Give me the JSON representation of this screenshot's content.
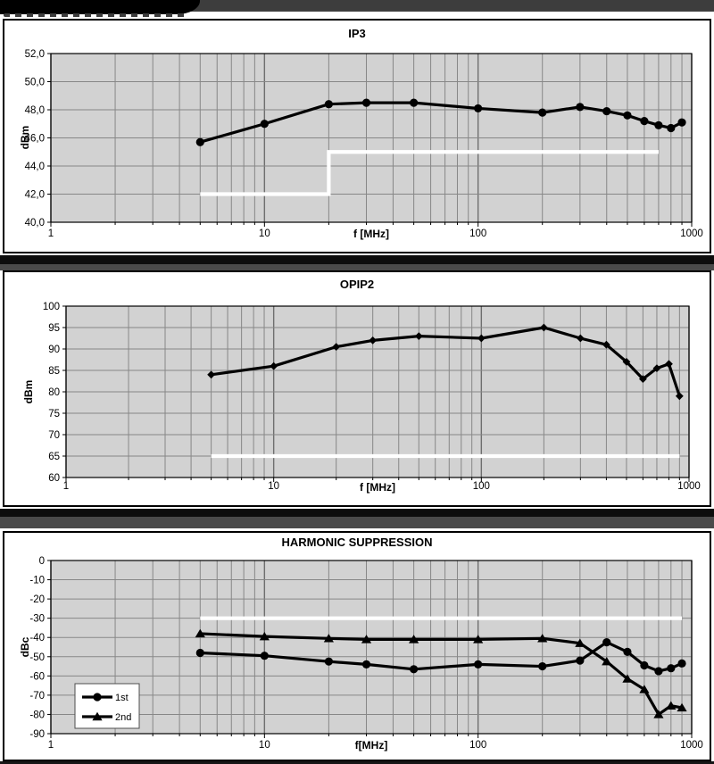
{
  "colors": {
    "plot_bg": "#d2d2d2",
    "grid": "#878787",
    "grid_major": "#6e6e6e",
    "series": "#000000",
    "limit_line": "#ffffff",
    "panel_border": "#000000",
    "separator_black": "#0d0d0d",
    "separator_gray": "#4a4a4a",
    "banner_black": "#000000",
    "banner_gray": "#3d3d3d"
  },
  "chart_data": [
    {
      "type": "line",
      "title": "IP3",
      "ylabel": "dBm",
      "xlabel": "f [MHz]",
      "x_scale": "log",
      "xlim": [
        1,
        1000
      ],
      "ylim": [
        40,
        52
      ],
      "grid": true,
      "xtick_values": [
        1,
        10,
        100,
        1000
      ],
      "xtick_labels": [
        "1",
        "10",
        "100",
        "1000"
      ],
      "ytick_values": [
        52,
        50,
        48,
        46,
        44,
        42,
        40
      ],
      "ytick_labels": [
        "52,0",
        "50,0",
        "48,0",
        "46,0",
        "44,0",
        "42,0",
        "40,0"
      ],
      "x": [
        5,
        10,
        20,
        30,
        50,
        100,
        200,
        300,
        400,
        500,
        600,
        700,
        800,
        900
      ],
      "series": [
        {
          "marker": "circle",
          "values": [
            45.7,
            47.0,
            48.4,
            48.5,
            48.5,
            48.1,
            47.8,
            48.2,
            47.9,
            47.6,
            47.2,
            46.9,
            46.7,
            47.1
          ]
        }
      ],
      "limit_line": {
        "points": [
          [
            5,
            42
          ],
          [
            20,
            42
          ],
          [
            20,
            45
          ],
          [
            700,
            45
          ]
        ]
      },
      "legend": null
    },
    {
      "type": "line",
      "title": "OPIP2",
      "ylabel": "dBm",
      "xlabel": "f [MHz]",
      "x_scale": "log",
      "xlim": [
        1,
        1000
      ],
      "ylim": [
        60,
        100
      ],
      "grid": true,
      "xtick_values": [
        1,
        10,
        100,
        1000
      ],
      "xtick_labels": [
        "1",
        "10",
        "100",
        "1000"
      ],
      "ytick_values": [
        100,
        95,
        90,
        85,
        80,
        75,
        70,
        65,
        60
      ],
      "ytick_labels": [
        "100",
        "95",
        "90",
        "85",
        "80",
        "75",
        "70",
        "65",
        "60"
      ],
      "x": [
        5,
        10,
        20,
        30,
        50,
        100,
        200,
        300,
        400,
        500,
        600,
        700,
        800,
        900
      ],
      "series": [
        {
          "marker": "diamond",
          "values": [
            84,
            86,
            90.5,
            92,
            93,
            92.5,
            95,
            92.5,
            91,
            87,
            83,
            85.5,
            86.5,
            79
          ]
        }
      ],
      "limit_line": {
        "points": [
          [
            5,
            65
          ],
          [
            900,
            65
          ]
        ]
      },
      "legend": null
    },
    {
      "type": "line",
      "title": "HARMONIC SUPPRESSION",
      "ylabel": "dBc",
      "xlabel": "f[MHz]",
      "x_scale": "log",
      "xlim": [
        1,
        1000
      ],
      "ylim": [
        -90,
        0
      ],
      "grid": true,
      "xtick_values": [
        1,
        10,
        100,
        1000
      ],
      "xtick_labels": [
        "1",
        "10",
        "100",
        "1000"
      ],
      "ytick_values": [
        0,
        -10,
        -20,
        -30,
        -40,
        -50,
        -60,
        -70,
        -80,
        -90
      ],
      "ytick_labels": [
        "0",
        "-10",
        "-20",
        "-30",
        "-40",
        "-50",
        "-60",
        "-70",
        "-80",
        "-90"
      ],
      "x": [
        5,
        10,
        20,
        30,
        50,
        100,
        200,
        300,
        400,
        500,
        600,
        700,
        800,
        900
      ],
      "series": [
        {
          "name": "1st",
          "marker": "circle",
          "values": [
            -48,
            -49.5,
            -52.5,
            -54,
            -56.5,
            -54,
            -55,
            -52,
            -42.5,
            -47.5,
            -54.5,
            -57.5,
            -56,
            -53.5
          ]
        },
        {
          "name": "2nd",
          "marker": "triangle",
          "values": [
            -38,
            -39.5,
            -40.5,
            -41,
            -41,
            -41,
            -40.5,
            -43,
            -52.5,
            -61.5,
            -67,
            -80,
            -75.5,
            -76.5
          ]
        }
      ],
      "limit_line": {
        "points": [
          [
            5,
            -30
          ],
          [
            900,
            -30
          ]
        ]
      },
      "legend": {
        "labels": [
          "1st",
          "2nd"
        ]
      }
    }
  ]
}
